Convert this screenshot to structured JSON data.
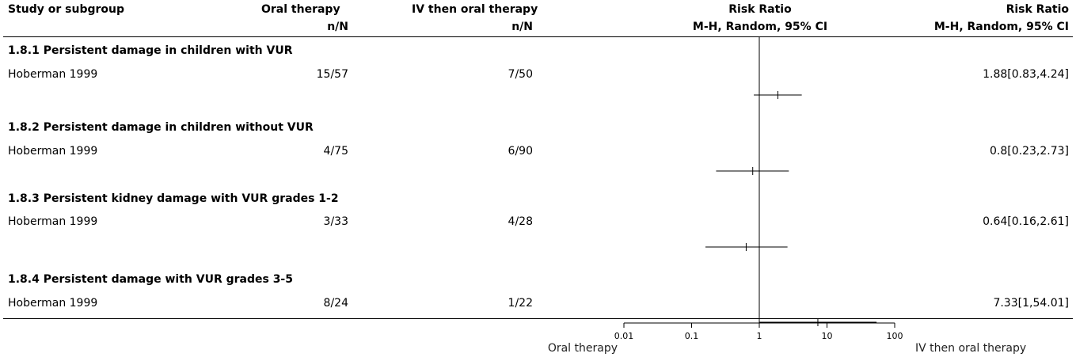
{
  "header": {
    "study_col": "Study or subgroup",
    "group1": "Oral therapy",
    "group1_sub": "n/N",
    "group2": "IV then oral therapy",
    "group2_sub": "n/N",
    "plot_col": "Risk Ratio",
    "plot_col_sub": "M-H, Random, 95% CI",
    "effect_col": "Risk Ratio",
    "effect_col_sub": "M-H, Random, 95% CI"
  },
  "subgroups": [
    {
      "title": "1.8.1 Persistent damage in children with VUR",
      "study": "Hoberman 1999",
      "group1": "15/57",
      "group2": "7/50",
      "effect_text": "1.88[0.83,4.24]"
    },
    {
      "title": "1.8.2 Persistent damage in children without VUR",
      "study": "Hoberman 1999",
      "group1": "4/75",
      "group2": "6/90",
      "effect_text": "0.8[0.23,2.73]"
    },
    {
      "title": "1.8.3 Persistent kidney damage with VUR grades 1-2",
      "study": "Hoberman 1999",
      "group1": "3/33",
      "group2": "4/28",
      "effect_text": "0.64[0.16,2.61]"
    },
    {
      "title": "1.8.4 Persistent damage with VUR grades 3-5",
      "study": "Hoberman 1999",
      "group1": "8/24",
      "group2": "1/22",
      "effect_text": "7.33[1,54.01]"
    }
  ],
  "axis": {
    "left_label": "Oral therapy",
    "right_label": "IV then oral therapy"
  },
  "chart_data": {
    "type": "forest",
    "scale": "log",
    "xlim": [
      0.01,
      100
    ],
    "ticks": [
      0.01,
      0.1,
      1,
      10,
      100
    ],
    "tick_labels": [
      "0.01",
      "0.1",
      "1",
      "10",
      "100"
    ],
    "null_line": 1,
    "studies": [
      {
        "label": "Hoberman 1999",
        "subgroup": "1.8.1 Persistent damage in children with VUR",
        "rr": 1.88,
        "lo": 0.83,
        "hi": 4.24
      },
      {
        "label": "Hoberman 1999",
        "subgroup": "1.8.2 Persistent damage in children without VUR",
        "rr": 0.8,
        "lo": 0.23,
        "hi": 2.73
      },
      {
        "label": "Hoberman 1999",
        "subgroup": "1.8.3 Persistent kidney damage with VUR grades 1-2",
        "rr": 0.64,
        "lo": 0.16,
        "hi": 2.61
      },
      {
        "label": "Hoberman 1999",
        "subgroup": "1.8.4 Persistent damage with VUR grades 3-5",
        "rr": 7.33,
        "lo": 1,
        "hi": 54.01
      }
    ]
  }
}
